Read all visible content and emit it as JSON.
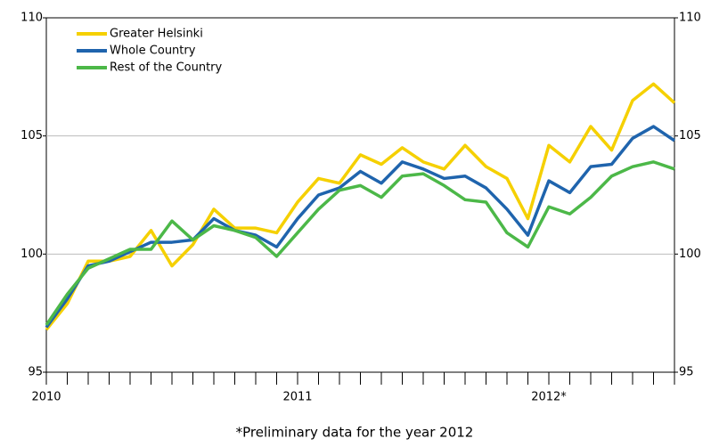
{
  "chart_data": {
    "type": "line",
    "categories": [
      "2010",
      null,
      null,
      null,
      null,
      null,
      null,
      null,
      null,
      null,
      null,
      null,
      "2011",
      null,
      null,
      null,
      null,
      null,
      null,
      null,
      null,
      null,
      null,
      null,
      "2012*",
      null,
      null,
      null,
      null,
      null,
      null
    ],
    "series": [
      {
        "name": "Greater Helsinki",
        "color": "#f5d000",
        "values": [
          96.8,
          97.9,
          99.7,
          99.7,
          99.9,
          101.0,
          99.5,
          100.4,
          101.9,
          101.1,
          101.1,
          100.9,
          102.2,
          103.2,
          103.0,
          104.2,
          103.8,
          104.5,
          103.9,
          103.6,
          104.6,
          103.7,
          103.2,
          101.5,
          104.6,
          103.9,
          105.4,
          104.4,
          106.5,
          107.2,
          106.4
        ]
      },
      {
        "name": "Whole Country",
        "color": "#1f64ad",
        "values": [
          96.9,
          98.1,
          99.5,
          99.7,
          100.1,
          100.5,
          100.5,
          100.6,
          101.5,
          101.0,
          100.8,
          100.3,
          101.5,
          102.5,
          102.8,
          103.5,
          103.0,
          103.9,
          103.6,
          103.2,
          103.3,
          102.8,
          101.9,
          100.8,
          103.1,
          102.6,
          103.7,
          103.8,
          104.9,
          105.4,
          104.8
        ]
      },
      {
        "name": "Rest of the Country",
        "color": "#4cb848",
        "values": [
          97.0,
          98.3,
          99.4,
          99.8,
          100.2,
          100.2,
          101.4,
          100.6,
          101.2,
          101.0,
          100.7,
          99.9,
          100.9,
          101.9,
          102.7,
          102.9,
          102.4,
          103.3,
          103.4,
          102.9,
          102.3,
          102.2,
          100.9,
          100.3,
          102.0,
          101.7,
          102.4,
          103.3,
          103.7,
          103.9,
          103.6
        ]
      }
    ],
    "ylim": [
      95,
      110
    ],
    "yticks": [
      95,
      100,
      105,
      110
    ],
    "y2lim": [
      95,
      110
    ],
    "y2ticks": [
      95,
      100,
      105,
      110
    ],
    "grid": true,
    "legend": "upper-left",
    "footnote": "*Preliminary data for the year 2012"
  }
}
